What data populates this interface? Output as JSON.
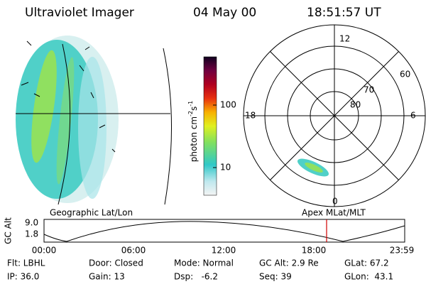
{
  "header": {
    "title": "Ultraviolet Imager",
    "date": "04 May 00",
    "time": "18:51:57 UT"
  },
  "colorbar": {
    "label": [
      "photon cm",
      "-2",
      "s",
      "-1"
    ],
    "ticks": [
      "100",
      "10"
    ]
  },
  "polar": {
    "mlt": [
      "12",
      "18",
      "6",
      "0"
    ],
    "mlat": [
      "60",
      "70",
      "80"
    ]
  },
  "panels": {
    "left": "Geographic Lat/Lon",
    "right": "Apex MLat/MLT"
  },
  "altitude": {
    "label": "GC Alt",
    "yticks": [
      "9.0",
      "1.8"
    ],
    "xticks": [
      "00:00",
      "06:00",
      "12:00",
      "18:00",
      "23:59"
    ]
  },
  "footer": {
    "rows": [
      [
        "Flt: LBHL",
        "Door: Closed",
        "Mode: Normal",
        "GC Alt: 2.9 Re",
        "GLat: 67.2"
      ],
      [
        "IP: 36.0",
        "Gain: 13",
        "Dsp:   -6.2",
        "Seq: 39",
        "GLon:  43.1"
      ]
    ]
  }
}
